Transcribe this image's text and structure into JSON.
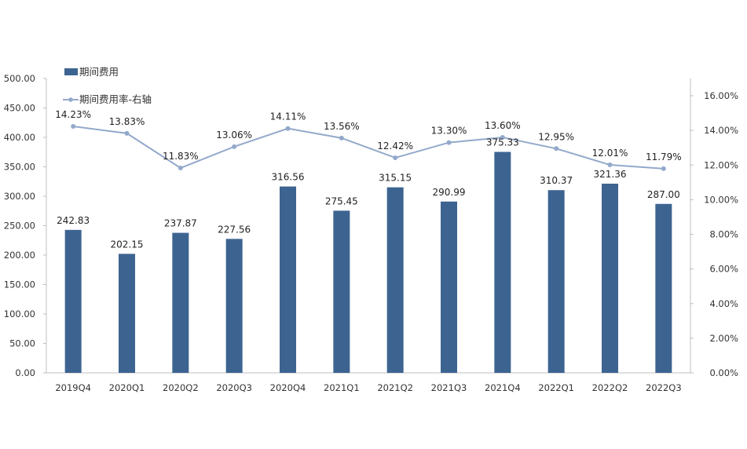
{
  "chart_data": {
    "type": "bar",
    "title": "",
    "categories": [
      "2019Q4",
      "2020Q1",
      "2020Q2",
      "2020Q3",
      "2020Q4",
      "2021Q1",
      "2021Q2",
      "2021Q3",
      "2021Q4",
      "2022Q1",
      "2022Q2",
      "2022Q3"
    ],
    "series": [
      {
        "name": "期间费用",
        "type": "bar",
        "axis": "left",
        "values": [
          242.83,
          202.15,
          237.87,
          227.56,
          316.56,
          275.45,
          315.15,
          290.99,
          375.33,
          310.37,
          321.36,
          287.0
        ],
        "labels": [
          "242.83",
          "202.15",
          "237.87",
          "227.56",
          "316.56",
          "275.45",
          "315.15",
          "290.99",
          "375.33",
          "310.37",
          "321.36",
          "287.00"
        ]
      },
      {
        "name": "期间费用率-右轴",
        "type": "line",
        "axis": "right",
        "values": [
          14.23,
          13.83,
          11.83,
          13.06,
          14.11,
          13.56,
          12.42,
          13.3,
          13.6,
          12.95,
          12.01,
          11.79
        ],
        "labels": [
          "14.23%",
          "13.83%",
          "11.83%",
          "13.06%",
          "14.11%",
          "13.56%",
          "12.42%",
          "13.30%",
          "13.60%",
          "12.95%",
          "12.01%",
          "11.79%"
        ]
      }
    ],
    "y_left": {
      "range": [
        0,
        500
      ],
      "ticks": [
        0,
        50,
        100,
        150,
        200,
        250,
        300,
        350,
        400,
        450,
        500
      ],
      "tick_labels": [
        "0.00",
        "50.00",
        "100.00",
        "150.00",
        "200.00",
        "250.00",
        "300.00",
        "350.00",
        "400.00",
        "450.00",
        "500.00"
      ]
    },
    "y_right": {
      "range": [
        0,
        17
      ],
      "ticks": [
        0,
        2,
        4,
        6,
        8,
        10,
        12,
        14,
        16
      ],
      "tick_labels": [
        "0.00%",
        "2.00%",
        "4.00%",
        "6.00%",
        "8.00%",
        "10.00%",
        "12.00%",
        "14.00%",
        "16.00%"
      ]
    },
    "legend": {
      "position": "top-left"
    },
    "grid": false,
    "colors": {
      "bar": "#3d6491",
      "line": "#93a9cb",
      "axis": "#bfbfbf"
    }
  }
}
